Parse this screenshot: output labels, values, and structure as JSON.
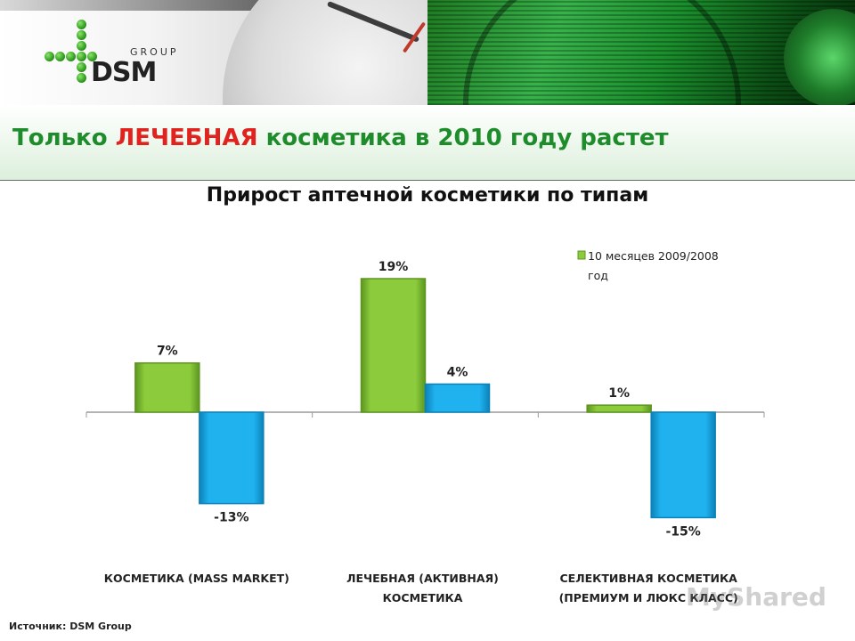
{
  "header": {
    "logo_group": "GROUP",
    "logo_brand": "DSM"
  },
  "slide": {
    "title_before": "Только ",
    "title_highlight": "ЛЕЧЕБНАЯ",
    "title_after": " косметика в 2010 году растет"
  },
  "colors": {
    "series_green": "#8ccc3c",
    "series_blue": "#1fb2ef",
    "title_green": "#1e8c2b",
    "highlight_red": "#e0231e"
  },
  "chart_data": {
    "type": "bar",
    "title": "Прирост аптечной косметики по типам",
    "categories": [
      [
        "КОСМЕТИКА (MASS MARKET)"
      ],
      [
        "ЛЕЧЕБНАЯ (АКТИВНАЯ)",
        "КОСМЕТИКА"
      ],
      [
        "СЕЛЕКТИВНАЯ КОСМЕТИКА",
        "(ПРЕМИУМ И ЛЮКС КЛАСС)"
      ]
    ],
    "series": [
      {
        "name": "10 месяцев 2009/2008 год",
        "values": [
          7,
          19,
          1
        ],
        "labels": [
          "7%",
          "19%",
          "1%"
        ]
      },
      {
        "values": [
          -13,
          4,
          -15
        ],
        "labels": [
          "-13%",
          "4%",
          "-15%"
        ]
      }
    ],
    "legend_lines": [
      "10 месяцев 2009/2008",
      "год"
    ],
    "legend_position": "top-right",
    "value_unit": "%",
    "grid": false
  },
  "source": "Источник: DSM Group",
  "watermark": "MyShared"
}
